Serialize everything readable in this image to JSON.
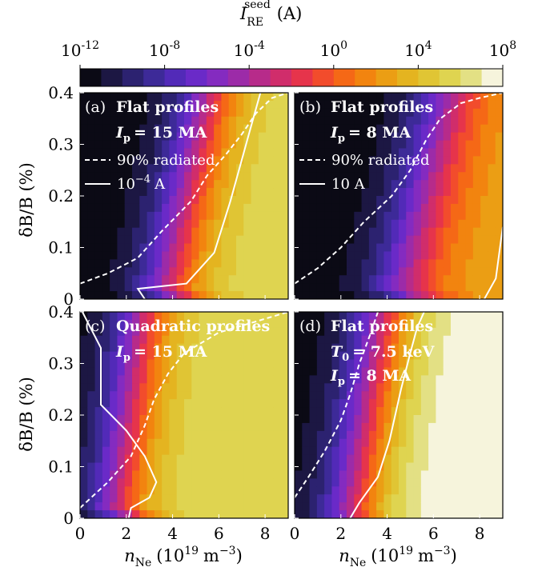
{
  "colorbar": {
    "label": "I_RE^seed (A)",
    "label_main": "I",
    "label_sup": "seed",
    "label_sub": "RE",
    "label_units": "(A)",
    "ticks": [
      "10^-12",
      "10^-8",
      "10^-4",
      "10^0",
      "10^4",
      "10^8"
    ],
    "tick_mantissa": "10",
    "tick_exponents": [
      "-12",
      "-8",
      "-4",
      "0",
      "4",
      "8"
    ],
    "log10_min": -12,
    "log10_max": 8,
    "levels": 20,
    "colors": [
      "#0b0a15",
      "#1c1743",
      "#2c2270",
      "#3d2a98",
      "#522ab8",
      "#6a2ac8",
      "#842bc0",
      "#9c2ba8",
      "#b72b8a",
      "#d02d6b",
      "#e6344b",
      "#f24c2c",
      "#f56816",
      "#f2840f",
      "#eb9e14",
      "#e4b420",
      "#e0c534",
      "#dfd450",
      "#e3e084",
      "#f6f4dc"
    ]
  },
  "axes": {
    "xlabel": "n_Ne (10^19 m^-3)",
    "xlabel_main": "n",
    "xlabel_sub": "Ne",
    "xlabel_units": "(10",
    "xlabel_exp": "19",
    "xlabel_tail": "m",
    "xlabel_tail_exp": "−3",
    "xlabel_close": ")",
    "ylabel": "δB/B (%)",
    "xticks": [
      "0",
      "2",
      "4",
      "6",
      "8"
    ],
    "yticks": [
      "0",
      "0.1",
      "0.2",
      "0.3",
      "0.4"
    ],
    "xlim": [
      0,
      9
    ],
    "ylim": [
      0,
      0.4
    ]
  },
  "chart_data": [
    {
      "type": "heatmap",
      "panel": "(a)",
      "title": "Flat profiles",
      "current": "I_p = 15 MA",
      "current_symbol": "I",
      "current_sub": "p",
      "current_value": "= 15 MA",
      "legend": [
        {
          "style": "dashed",
          "label": "90% radiated"
        },
        {
          "style": "solid",
          "label": "10^-4 A",
          "label_base": "10",
          "label_exp": "−4",
          "label_unit": "A"
        }
      ],
      "field": {
        "min": -12,
        "max": 6,
        "y0": 0.02,
        "x0": 3.8,
        "slope": 8.0,
        "width": 2.6
      },
      "radiated_90": {
        "x": [
          0,
          1.2,
          2.5,
          3.5,
          4.8,
          5.5,
          6.3,
          7.0,
          7.6,
          8.3,
          9.0
        ],
        "y": [
          0.03,
          0.05,
          0.08,
          0.13,
          0.19,
          0.24,
          0.28,
          0.32,
          0.36,
          0.39,
          0.4
        ]
      },
      "contour_1e-4": {
        "x": [
          2.8,
          2.5,
          4.6,
          5.8,
          6.5,
          7.3,
          7.8
        ],
        "y": [
          0.0,
          0.02,
          0.03,
          0.09,
          0.19,
          0.32,
          0.4
        ]
      }
    },
    {
      "type": "heatmap",
      "panel": "(b)",
      "title": "Flat profiles",
      "current": "I_p = 8 MA",
      "current_symbol": "I",
      "current_sub": "p",
      "current_value": "= 8 MA",
      "legend": [
        {
          "style": "dashed",
          "label": "90% radiated"
        },
        {
          "style": "solid",
          "label": "10 A"
        }
      ],
      "field": {
        "min": -12,
        "max": 3,
        "y0": 0.02,
        "x0": 4.6,
        "slope": 9.0,
        "width": 2.8
      },
      "radiated_90": {
        "x": [
          0,
          1.0,
          2.0,
          3.0,
          4.2,
          5.0,
          5.7,
          6.3,
          7.2,
          8.0,
          9.0
        ],
        "y": [
          0.03,
          0.06,
          0.1,
          0.15,
          0.2,
          0.25,
          0.31,
          0.35,
          0.38,
          0.39,
          0.4
        ]
      },
      "contour_10A": {
        "x": [
          8.2,
          8.7,
          9.0
        ],
        "y": [
          0.0,
          0.04,
          0.14
        ]
      }
    },
    {
      "type": "heatmap",
      "panel": "(c)",
      "title": "Quadratic profiles",
      "current": "I_p = 15 MA",
      "current_symbol": "I",
      "current_sub": "p",
      "current_value": "= 15 MA",
      "field": {
        "min": -12,
        "max": 6,
        "y0": 0.02,
        "x0": 1.6,
        "slope": 5.0,
        "width": 2.4
      },
      "radiated_90": {
        "x": [
          0,
          1.2,
          2.2,
          2.8,
          3.2,
          3.8,
          4.5,
          6.0,
          7.5,
          9.0
        ],
        "y": [
          0.02,
          0.07,
          0.12,
          0.18,
          0.23,
          0.28,
          0.32,
          0.36,
          0.38,
          0.4
        ]
      },
      "contour_1e-4": {
        "x": [
          0.1,
          0.9,
          0.9,
          2.0,
          2.8,
          3.3,
          3.0,
          2.2,
          2.1
        ],
        "y": [
          0.4,
          0.33,
          0.22,
          0.17,
          0.12,
          0.07,
          0.04,
          0.02,
          0.0
        ]
      }
    },
    {
      "type": "heatmap",
      "panel": "(d)",
      "title": "Flat profiles",
      "temperature": "T_0 = 7.5 keV",
      "temperature_symbol": "T",
      "temperature_sub": "0",
      "temperature_value": "= 7.5 keV",
      "current": "I_p = 8 MA",
      "current_symbol": "I",
      "current_sub": "p",
      "current_value": "= 8 MA",
      "field": {
        "min": -12,
        "max": 8,
        "y0": 0.01,
        "x0": 2.6,
        "slope": 6.0,
        "width": 2.6
      },
      "radiated_90": {
        "x": [
          0,
          0.6,
          1.3,
          2.0,
          2.4,
          2.8,
          3.3,
          3.6
        ],
        "y": [
          0.04,
          0.08,
          0.13,
          0.19,
          0.24,
          0.3,
          0.36,
          0.4
        ]
      },
      "contour_1e-4": {
        "x": [
          2.4,
          2.8,
          3.6,
          4.1,
          4.6,
          5.0,
          5.3,
          5.6
        ],
        "y": [
          0.0,
          0.03,
          0.08,
          0.15,
          0.25,
          0.32,
          0.37,
          0.4
        ]
      }
    }
  ]
}
